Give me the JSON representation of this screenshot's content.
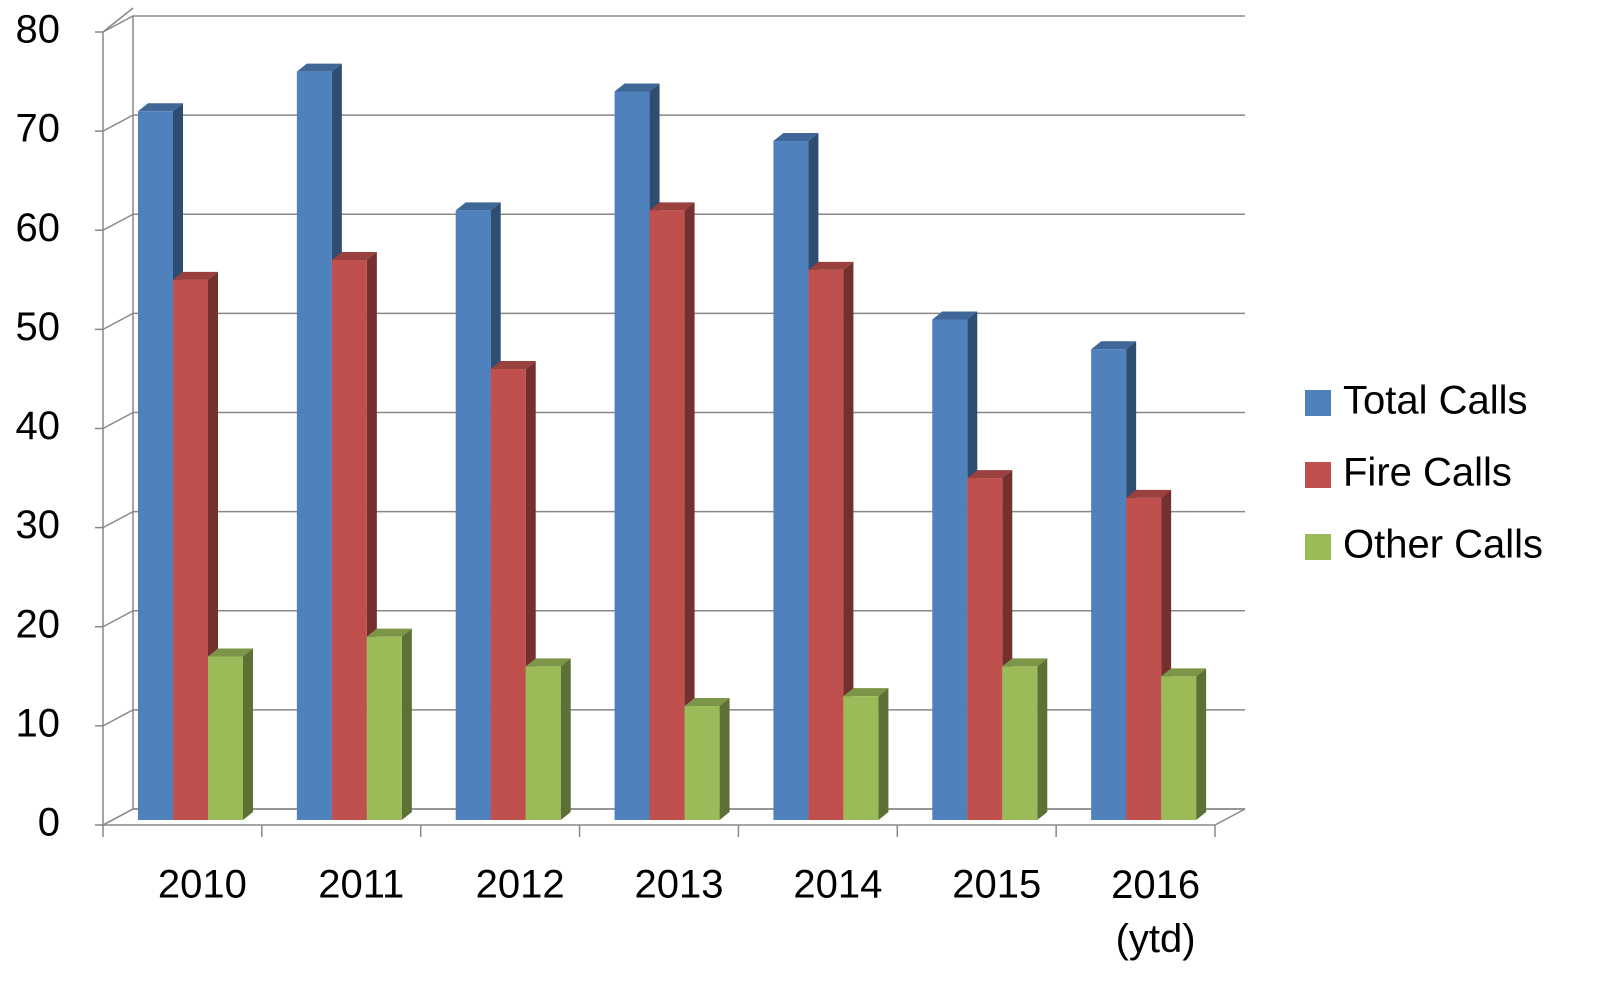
{
  "chart_data": {
    "type": "bar3d",
    "categories": [
      "2010",
      "2011",
      "2012",
      "2013",
      "2014",
      "2015",
      "2016 (ytd)"
    ],
    "series": [
      {
        "name": "Total Calls",
        "color": "#4f81bd",
        "values": [
          72,
          76,
          62,
          74,
          69,
          51,
          48
        ]
      },
      {
        "name": "Fire Calls",
        "color": "#c0504d",
        "values": [
          55,
          57,
          46,
          62,
          56,
          35,
          33
        ]
      },
      {
        "name": "Other Calls",
        "color": "#9bbb59",
        "values": [
          17,
          19,
          16,
          12,
          13,
          16,
          15
        ]
      }
    ],
    "ylim": [
      0,
      80
    ],
    "yticks": [
      0,
      10,
      20,
      30,
      40,
      50,
      60,
      70,
      80
    ],
    "grid": true,
    "legend": "right"
  }
}
